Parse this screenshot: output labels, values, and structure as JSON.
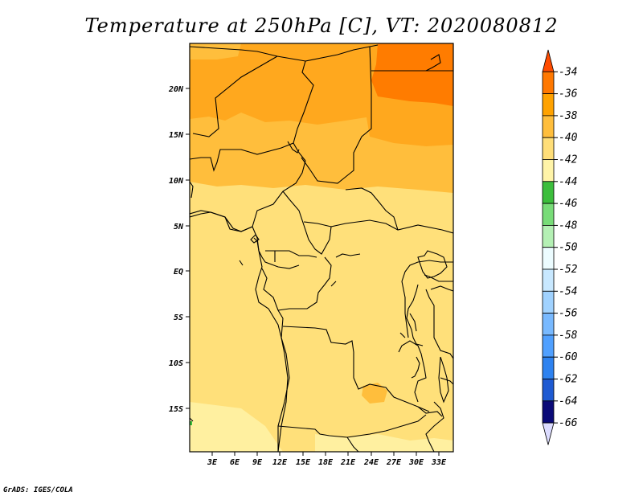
{
  "title": "Temperature at 250hPa [C], VT: 2020080812",
  "credit": "GrADS: IGES/COLA",
  "map": {
    "lat_labels": [
      "20N",
      "15N",
      "10N",
      "5N",
      "EQ",
      "5S",
      "10S",
      "15S"
    ],
    "lon_labels": [
      "3E",
      "6E",
      "9E",
      "12E",
      "15E",
      "18E",
      "21E",
      "24E",
      "27E",
      "30E",
      "33E"
    ]
  },
  "colorbar": {
    "labels": [
      "-34",
      "-36",
      "-38",
      "-40",
      "-42",
      "-44",
      "-46",
      "-48",
      "-50",
      "-52",
      "-54",
      "-56",
      "-58",
      "-60",
      "-62",
      "-64",
      "-66"
    ],
    "colors": [
      "#ff4b00",
      "#ff7800",
      "#ffa200",
      "#ffbe3c",
      "#ffde78",
      "#fff4a8",
      "#3cbe3c",
      "#78dc78",
      "#b4f0b4",
      "#ecfcff",
      "#c8e8ff",
      "#a0d2ff",
      "#78b9ff",
      "#50a0ff",
      "#2d82f0",
      "#1e5ad2",
      "#0a0a78"
    ],
    "under_color": "#dcdcff"
  }
}
